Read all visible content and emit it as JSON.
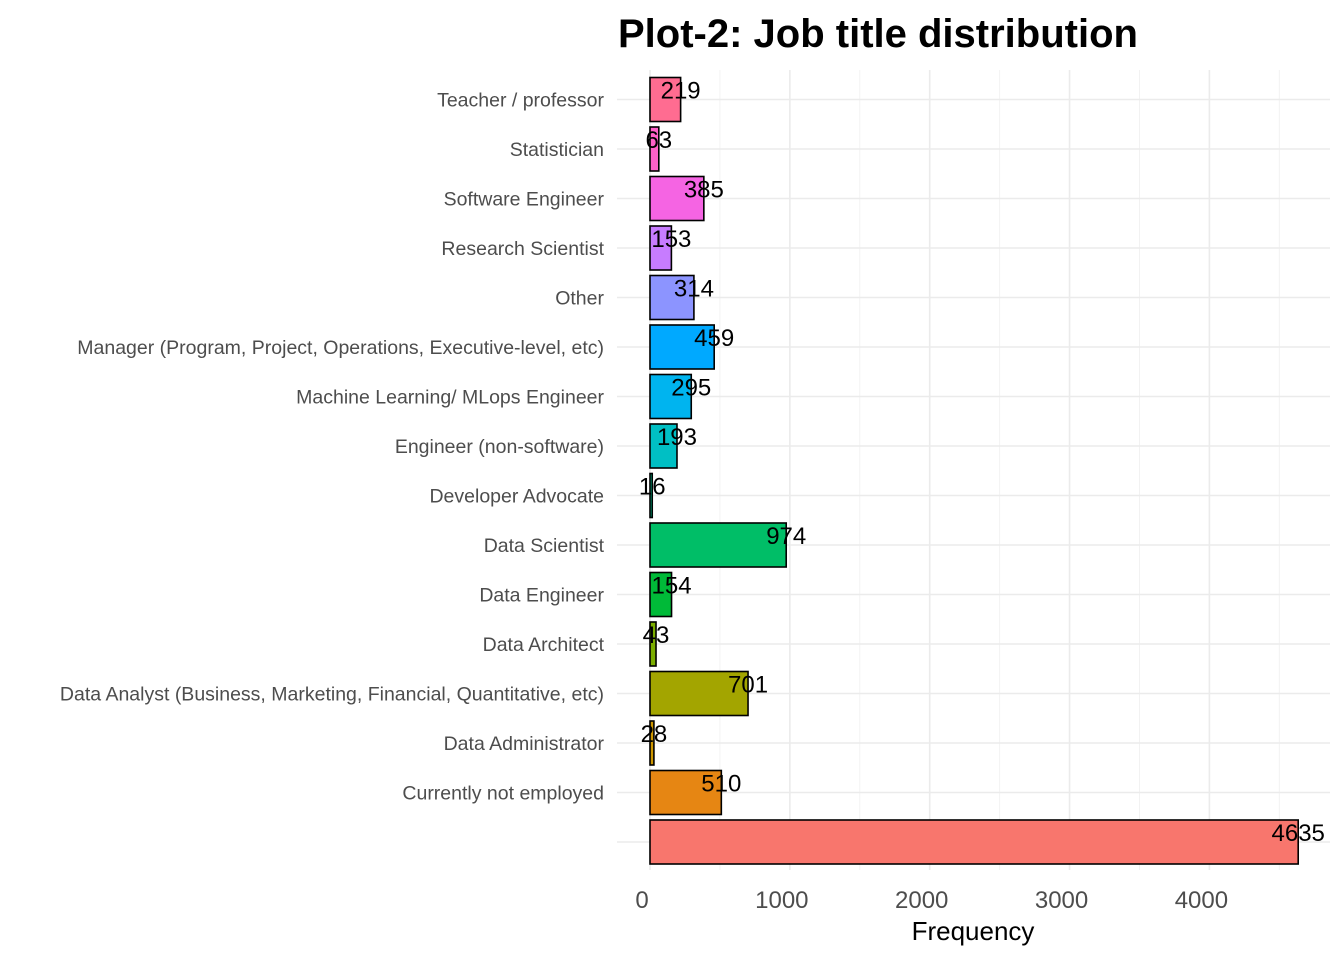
{
  "chart_data": {
    "type": "bar",
    "orientation": "horizontal",
    "title": "Plot-2: Job title distribution",
    "xlabel": "Frequency",
    "ylabel": "",
    "xlim": [
      0,
      4635
    ],
    "xticks": [
      0,
      1000,
      2000,
      3000,
      4000
    ],
    "xtick_labels": [
      "0",
      "1000",
      "2000",
      "3000",
      "4000"
    ],
    "grid": true,
    "legend": "none",
    "categories": [
      "Teacher / professor",
      "Statistician",
      "Software Engineer",
      "Research Scientist",
      "Other",
      "Manager (Program, Project, Operations, Executive-level, etc)",
      "Machine Learning/ MLops Engineer",
      "Engineer (non-software)",
      "Developer Advocate",
      "Data Scientist",
      "Data Engineer",
      "Data Architect",
      "Data Analyst (Business, Marketing, Financial, Quantitative, etc)",
      "Data Administrator",
      "Currently not employed",
      ""
    ],
    "values": [
      219,
      63,
      385,
      153,
      314,
      459,
      295,
      193,
      16,
      974,
      154,
      43,
      701,
      28,
      510,
      4635
    ],
    "data_labels": [
      "219",
      "63",
      "385",
      "153",
      "314",
      "459",
      "295",
      "193",
      "16",
      "974",
      "154",
      "43",
      "701",
      "28",
      "510",
      "4635"
    ],
    "colors": [
      "#FF6C91",
      "#FF61C9",
      "#F564E3",
      "#C77CFF",
      "#8C94FF",
      "#00A9FF",
      "#00B4EF",
      "#00BFC4",
      "#00C08B",
      "#00BE67",
      "#00BA38",
      "#7CAE00",
      "#A3A500",
      "#CD9600",
      "#E68613",
      "#F8766D"
    ]
  }
}
